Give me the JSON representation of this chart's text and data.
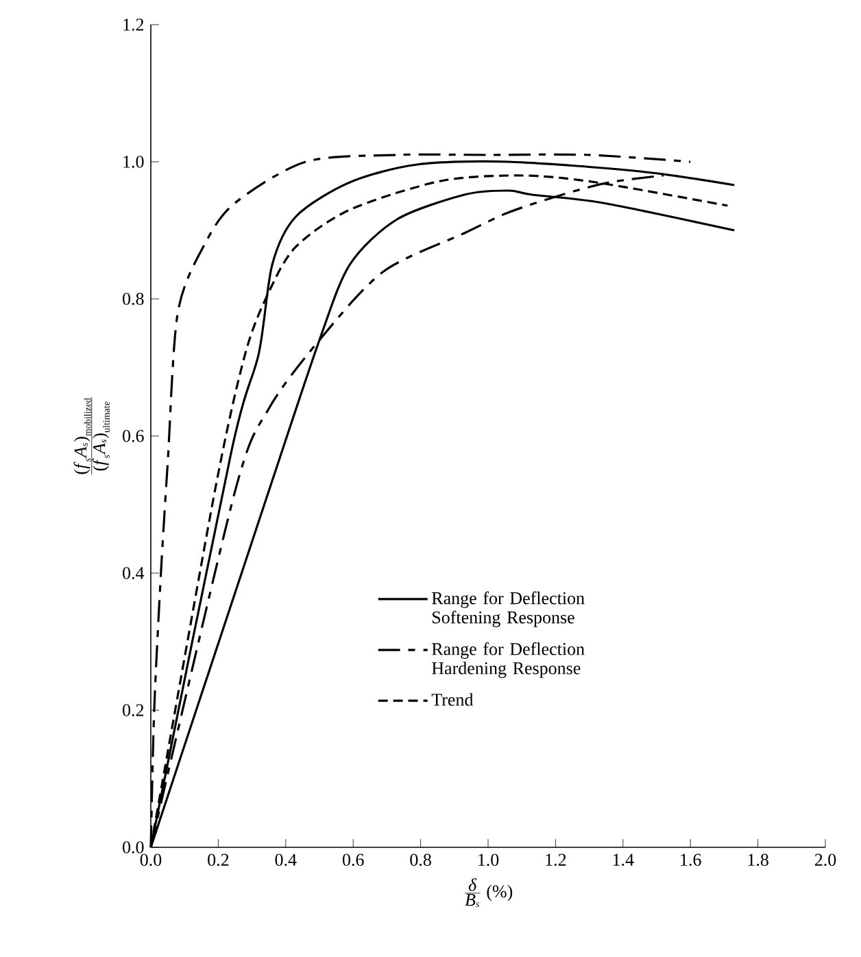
{
  "chart_data": {
    "type": "line",
    "xlabel": "\\frac{\\mbox{\\textit{δ}}}{\\mbox{\\textit{B}}_{\\mbox{\\scriptsize\\textit{s}}}}\\ \\mbox{(\\%)}",
    "ylabel": "\\frac{\\mbox{(\\textit{f}}_{\\mbox{\\scriptsize\\textit{s}}}\\mbox{\\textit{A}}_{\\mbox{\\scriptsize\\textit{s}}}\\mbox{)}_{\\mbox{\\scriptsize mobilized}}}{\\mbox{(\\textit{f}}_{\\mbox{\\scriptsize\\textit{s}}}\\mbox{\\textit{A}}_{\\mbox{\\scriptsize\\textit{s}}}\\mbox{)}_{\\mbox{\\scriptsize ultimate}}}",
    "xlim": [
      0,
      2.0
    ],
    "ylim": [
      0,
      1.2
    ],
    "xticks": [
      {
        "value": 0,
        "label": "0.0"
      },
      0.2,
      0.4,
      0.6,
      0.8,
      {
        "value": 1,
        "label": "1.0"
      },
      1.2,
      1.4,
      1.6,
      1.8,
      {
        "value": 2,
        "label": "2.0"
      }
    ],
    "yticks": [
      {
        "value": 0,
        "label": "0.0"
      },
      0.2,
      0.4,
      0.6,
      0.8,
      {
        "value": 1,
        "label": "1.0"
      },
      1.2
    ],
    "legend": "bottom",
    "series": [
      {
        "name": "Range for Deflection Softening Response",
        "color": "#000000",
        "line_style": "solid",
        "x": [
          0,
          0.24,
          0.32,
          0.36,
          0.43,
          0.59,
          0.79,
          1.06,
          1.45,
          1.73
        ],
        "values": [
          0,
          0.58,
          0.72,
          0.85,
          0.92,
          0.97,
          0.996,
          1.0,
          0.986,
          0.966
        ]
      },
      {
        "color": "#000000",
        "line_style": "solid",
        "x": [
          0,
          0.35,
          0.5,
          0.59,
          0.73,
          0.93,
          1.06,
          1.13,
          1.34,
          1.73
        ],
        "values": [
          0,
          0.52,
          0.74,
          0.85,
          0.916,
          0.952,
          0.958,
          0.952,
          0.94,
          0.9
        ]
      },
      {
        "name": "Range for Deflection Hardening Response",
        "color": "#000000",
        "line_style": "dashdot",
        "x": [
          0,
          0.01,
          0.03,
          0.05,
          0.08,
          0.16,
          0.25,
          0.46,
          0.73,
          1.0,
          1.3,
          1.6
        ],
        "values": [
          0,
          0.2,
          0.4,
          0.56,
          0.78,
          0.88,
          0.94,
          1.0,
          1.01,
          1.01,
          1.01,
          1.0
        ]
      },
      {
        "color": "#000000",
        "line_style": "dashdot",
        "x": [
          0,
          0.25,
          0.35,
          0.5,
          0.69,
          0.93,
          1.06,
          1.22,
          1.36,
          1.52
        ],
        "values": [
          0,
          0.52,
          0.64,
          0.74,
          0.84,
          0.896,
          0.926,
          0.952,
          0.97,
          0.98
        ]
      },
      {
        "name": "Trend",
        "color": "#000000",
        "line_style": "dashed",
        "x": [
          0,
          0.19,
          0.28,
          0.35,
          0.43,
          0.59,
          0.86,
          1.1,
          1.32,
          1.71
        ],
        "values": [
          0,
          0.52,
          0.72,
          0.81,
          0.876,
          0.93,
          0.972,
          0.98,
          0.97,
          0.936
        ]
      }
    ]
  }
}
